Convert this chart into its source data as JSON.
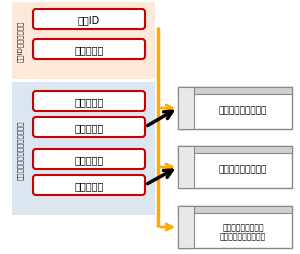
{
  "bg_color": "#ffffff",
  "section1_bg": "#fde9d9",
  "section2_bg": "#dce6f1",
  "box_fill": "#ffffff",
  "box_edge": "#cc0000",
  "panel_fill": "#ffffff",
  "panel_edge": "#888888",
  "panel_top_fill": "#d0d0d0",
  "panel_left_fill": "#e8e8e8",
  "arrow_yellow": "#ffaa00",
  "arrow_black": "#000000",
  "label_section1": "会員IDでのログイン",
  "label_section2": "アカウントコードでのログイン",
  "box1_text": "会員ID",
  "box2_text": "パスワード",
  "box3_text": "アカウント",
  "box4_text": "パスワード",
  "box5_text": "アカウント",
  "box6_text": "パスワード",
  "panel1_text": "コントロールパネル",
  "panel2_text": "コントロールパネル",
  "panel3_line1": "コントロールパネル",
  "panel3_line2": "（パスワード未設定）",
  "figsize": [
    3.0,
    2.55
  ],
  "dpi": 100
}
